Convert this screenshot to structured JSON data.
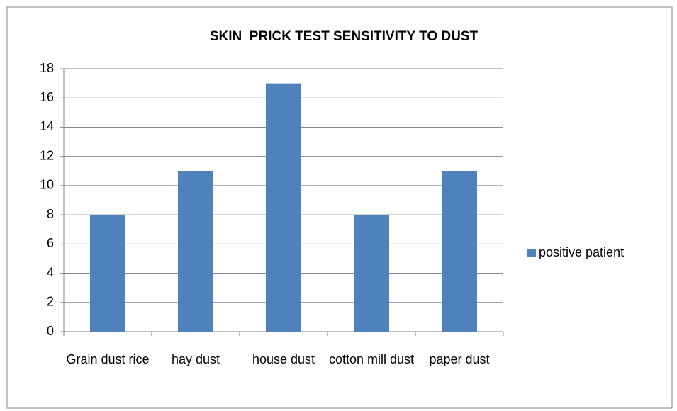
{
  "chart_data": {
    "type": "bar",
    "title": "SKIN  PRICK TEST SENSITIVITY TO DUST",
    "categories": [
      "Grain dust rice",
      "hay dust",
      "house dust",
      "cotton mill dust",
      "paper dust"
    ],
    "series": [
      {
        "name": "positive patient",
        "color": "#4f81bd",
        "values": [
          8,
          11,
          17,
          8,
          11
        ]
      }
    ],
    "ylim": [
      0,
      18
    ],
    "yticks": [
      0,
      2,
      4,
      6,
      8,
      10,
      12,
      14,
      16,
      18
    ],
    "grid": true,
    "legend": "right"
  }
}
